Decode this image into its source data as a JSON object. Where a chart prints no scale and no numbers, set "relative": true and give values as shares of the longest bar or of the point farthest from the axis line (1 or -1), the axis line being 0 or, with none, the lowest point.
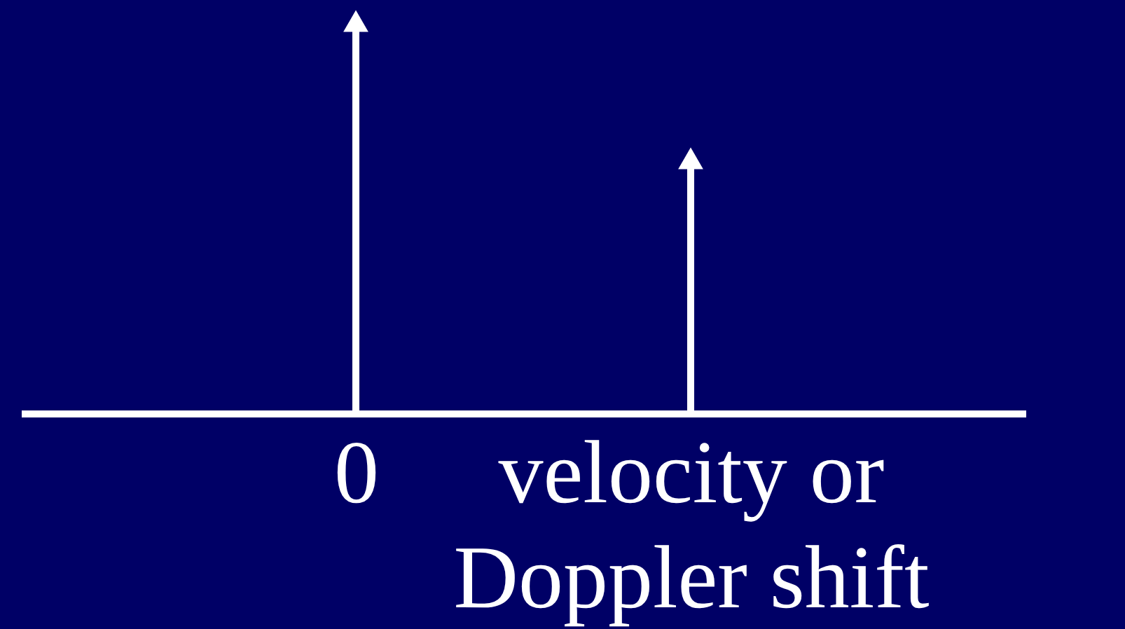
{
  "chart_data": {
    "type": "lollipop",
    "relative": true,
    "categories": [
      "0",
      "velocity or Doppler shift"
    ],
    "values": [
      1,
      0.65
    ],
    "color": "#ffffff",
    "marker": "triangle"
  }
}
